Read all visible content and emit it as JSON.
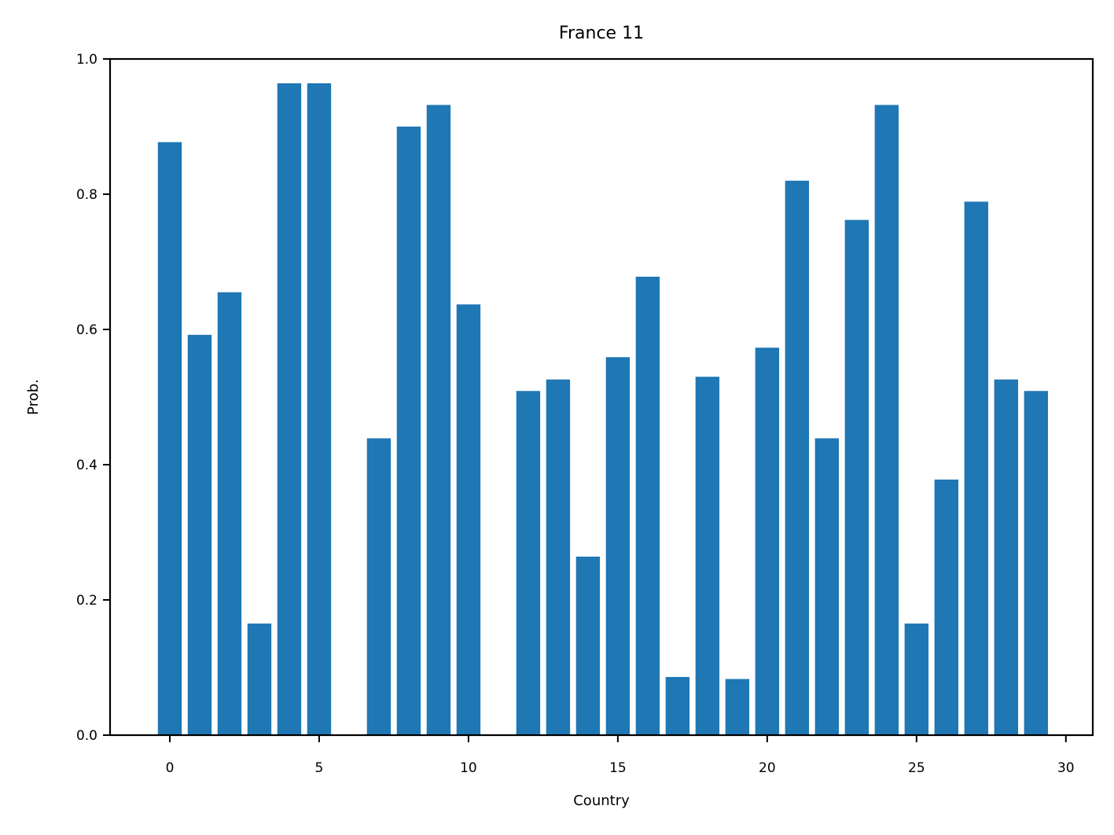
{
  "chart_data": {
    "type": "bar",
    "title": "France 11",
    "xlabel": "Country",
    "ylabel": "Prob.",
    "x": [
      0,
      1,
      2,
      3,
      4,
      5,
      6,
      7,
      8,
      9,
      10,
      11,
      12,
      13,
      14,
      15,
      16,
      17,
      18,
      19,
      20,
      21,
      22,
      23,
      24,
      25,
      26,
      27,
      28,
      29
    ],
    "values": [
      0.877,
      0.592,
      0.655,
      0.165,
      0.964,
      0.964,
      0.0,
      0.439,
      0.9,
      0.932,
      0.637,
      0.0,
      0.509,
      0.526,
      0.264,
      0.559,
      0.678,
      0.086,
      0.53,
      0.083,
      0.573,
      0.82,
      0.439,
      0.762,
      0.932,
      0.165,
      0.378,
      0.789,
      0.526,
      0.509
    ],
    "xlim": [
      -2.0,
      30.9
    ],
    "ylim": [
      0,
      1.0
    ],
    "xticks": [
      0,
      5,
      10,
      15,
      20,
      25,
      30
    ],
    "xtick_labels": [
      "0",
      "5",
      "10",
      "15",
      "20",
      "25",
      "30"
    ],
    "yticks": [
      0.0,
      0.2,
      0.4,
      0.6,
      0.8,
      1.0
    ],
    "ytick_labels": [
      "0.0",
      "0.2",
      "0.4",
      "0.6",
      "0.8",
      "1.0"
    ],
    "bar_color": "#1f77b4",
    "grid": false,
    "legend": "none"
  }
}
